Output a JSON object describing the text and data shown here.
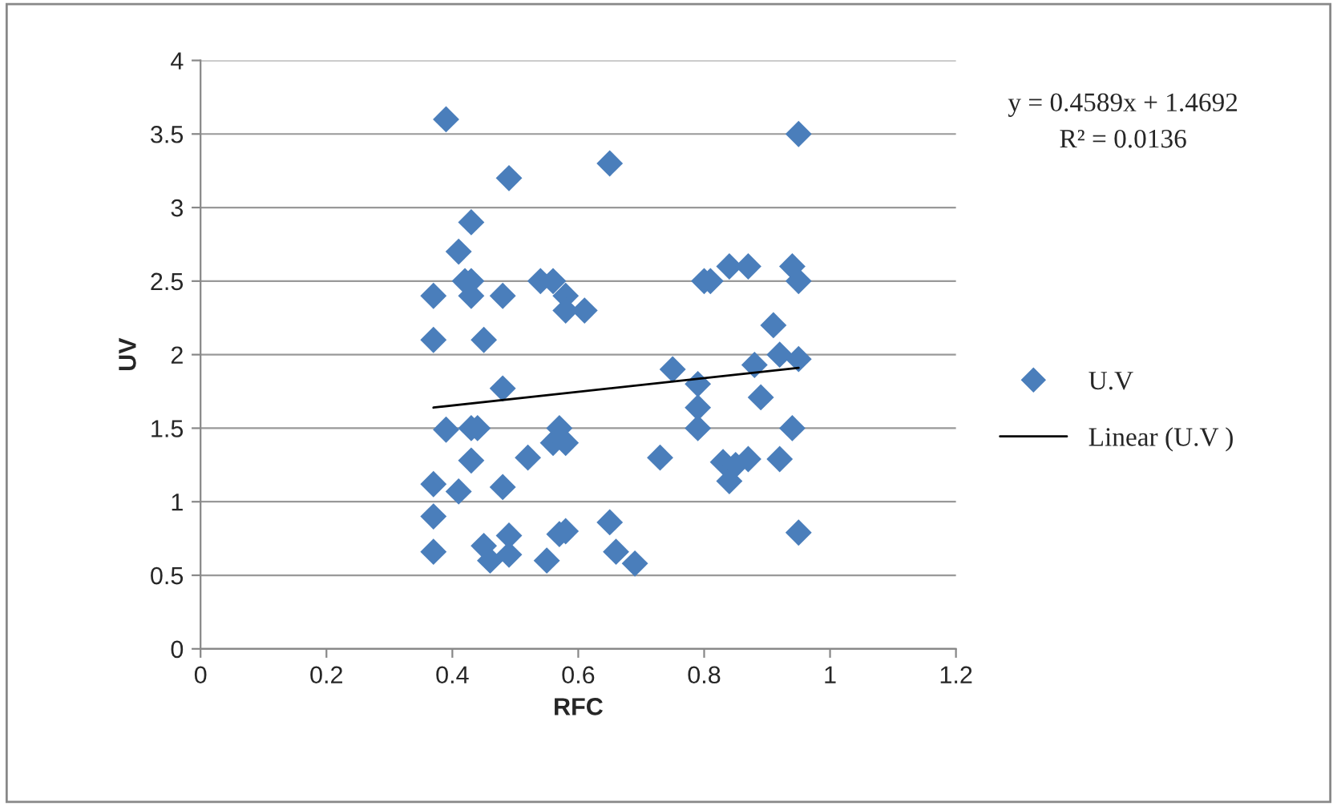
{
  "chart_data": {
    "type": "scatter",
    "xlabel": "RFC",
    "ylabel": "UV",
    "xlim": [
      0,
      1.2
    ],
    "xticks": [
      0,
      0.2,
      0.4,
      0.6,
      0.8,
      1,
      1.2
    ],
    "ylim": [
      0,
      4
    ],
    "yticks": [
      0,
      0.5,
      1,
      1.5,
      2,
      2.5,
      3,
      3.5,
      4
    ],
    "grid": "y",
    "legend": "right",
    "marker": "diamond",
    "annotations": [
      "y = 0.4589x + 1.4692",
      "R² = 0.0136"
    ],
    "series": [
      {
        "name": "U.V",
        "color": "#4a7ebb",
        "x": [
          0.37,
          0.37,
          0.37,
          0.37,
          0.37,
          0.39,
          0.39,
          0.41,
          0.41,
          0.42,
          0.43,
          0.43,
          0.43,
          0.43,
          0.43,
          0.44,
          0.45,
          0.45,
          0.46,
          0.48,
          0.48,
          0.48,
          0.49,
          0.49,
          0.49,
          0.52,
          0.54,
          0.55,
          0.56,
          0.56,
          0.57,
          0.57,
          0.58,
          0.58,
          0.58,
          0.58,
          0.61,
          0.65,
          0.65,
          0.66,
          0.69,
          0.73,
          0.75,
          0.79,
          0.79,
          0.79,
          0.8,
          0.81,
          0.83,
          0.84,
          0.84,
          0.85,
          0.87,
          0.87,
          0.88,
          0.89,
          0.91,
          0.92,
          0.92,
          0.94,
          0.94,
          0.95,
          0.95,
          0.95,
          0.95
        ],
        "values": [
          2.4,
          2.1,
          1.12,
          0.9,
          0.66,
          3.6,
          1.49,
          2.7,
          1.07,
          2.5,
          2.9,
          2.5,
          1.5,
          2.4,
          1.28,
          1.5,
          2.1,
          0.7,
          0.6,
          2.4,
          1.77,
          1.1,
          0.77,
          0.64,
          3.2,
          1.3,
          2.5,
          0.6,
          2.5,
          1.4,
          1.5,
          0.78,
          2.4,
          2.3,
          0.8,
          1.4,
          2.3,
          3.3,
          0.86,
          0.66,
          0.58,
          1.3,
          1.9,
          1.8,
          1.64,
          1.5,
          2.5,
          2.5,
          1.27,
          2.6,
          1.14,
          1.25,
          2.6,
          1.29,
          1.93,
          1.71,
          2.2,
          1.29,
          2.0,
          2.6,
          1.5,
          2.5,
          3.5,
          1.97,
          0.79
        ]
      },
      {
        "name": "Linear (U.V )",
        "type": "line",
        "color": "#000000",
        "x": [
          0.37,
          0.95
        ],
        "values": [
          1.64,
          1.91
        ],
        "marker": "none",
        "line_style": "solid"
      }
    ]
  }
}
